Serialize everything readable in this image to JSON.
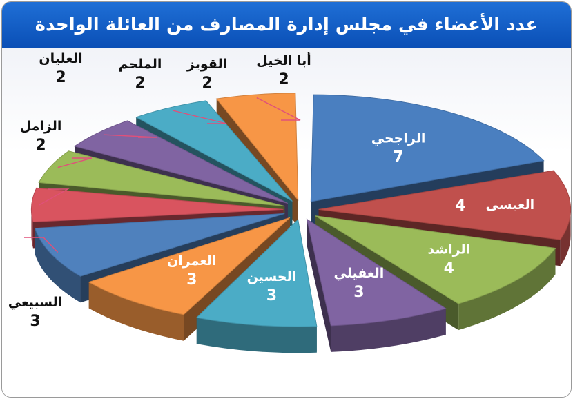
{
  "title": "عدد الأعضاء في مجلس إدارة المصارف من العائلة الواحدة",
  "chart_data": {
    "type": "pie",
    "title": "عدد الأعضاء في مجلس إدارة المصارف من العائلة الواحدة",
    "exploded": true,
    "three_d": true,
    "label_style": "inside for large slices, leader lines for small slices",
    "slices": [
      {
        "label": "الراجحي",
        "value": 7,
        "color": "#4a7fc0"
      },
      {
        "label": "العيسى",
        "value": 4,
        "color": "#c0504d"
      },
      {
        "label": "الراشد",
        "value": 4,
        "color": "#9bbb59"
      },
      {
        "label": "الغفيلي",
        "value": 3,
        "color": "#8064a2"
      },
      {
        "label": "الحسين",
        "value": 3,
        "color": "#4bacc6"
      },
      {
        "label": "العمران",
        "value": 3,
        "color": "#f79646"
      },
      {
        "label": "السبيعي",
        "value": 3,
        "color": "#4f81bd"
      },
      {
        "label": "الزامل",
        "value": 2,
        "color": "#d9545f"
      },
      {
        "label": "العليان",
        "value": 2,
        "color": "#9bbb59"
      },
      {
        "label": "الملحم",
        "value": 2,
        "color": "#8064a2"
      },
      {
        "label": "القويز",
        "value": 2,
        "color": "#4bacc6"
      },
      {
        "label": "أبا الخيل",
        "value": 2,
        "color": "#f79646"
      }
    ],
    "leader_color": "#e0507a"
  }
}
